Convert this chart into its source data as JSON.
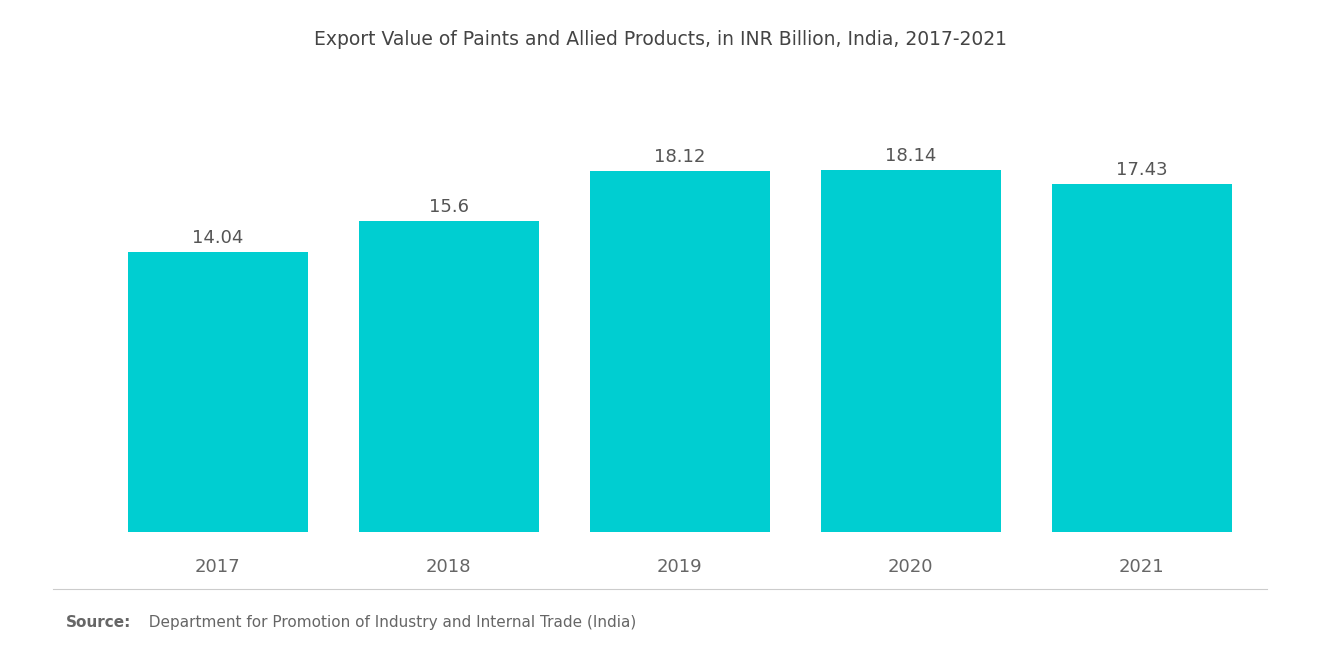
{
  "title": "Export Value of Paints and Allied Products, in INR Billion, India, 2017-2021",
  "categories": [
    "2017",
    "2018",
    "2019",
    "2020",
    "2021"
  ],
  "values": [
    14.04,
    15.6,
    18.12,
    18.14,
    17.43
  ],
  "bar_color": "#00CED1",
  "background_color": "#FFFFFF",
  "title_fontsize": 13.5,
  "label_fontsize": 13,
  "tick_fontsize": 13,
  "source_bold": "Source:",
  "source_normal": "  Department for Promotion of Industry and Internal Trade (India)",
  "ylim": [
    0,
    22
  ],
  "bar_width": 0.78
}
